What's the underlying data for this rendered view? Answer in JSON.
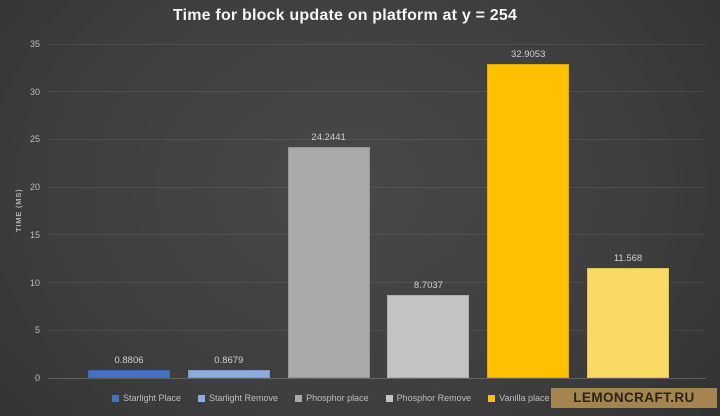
{
  "title_bar": {
    "title": "Time for block update on platform at y = 254"
  },
  "watermark": {
    "text": "LEMONCRAFT.RU",
    "bg_color": "#A5854F",
    "text_color": "#2B2413"
  },
  "colors": {
    "background_center": "#484848",
    "background_edge": "#212121",
    "gridline": "#4E4E4E",
    "axis_text": "#BDBDBD",
    "title_text": "#F5F5F5",
    "value_label_text": "#D0D0D0"
  },
  "chart_data": {
    "type": "bar",
    "title": "Time for block update on platform at y = 254",
    "xlabel": "",
    "ylabel": "TIME (MS)",
    "ylim": [
      0,
      35
    ],
    "yticks": [
      0,
      5,
      10,
      15,
      20,
      25,
      30,
      35
    ],
    "grid": true,
    "legend_position": "bottom",
    "series": [
      {
        "name": "Starlight Place",
        "value": 0.8806,
        "label": "0.8806",
        "color": "#4472C4"
      },
      {
        "name": "Starlight Remove",
        "value": 0.8679,
        "label": "0.8679",
        "color": "#8FAADC"
      },
      {
        "name": "Phosphor place",
        "value": 24.2441,
        "label": "24.2441",
        "color": "#A9A9A9"
      },
      {
        "name": "Phosphor Remove",
        "value": 8.7037,
        "label": "8.7037",
        "color": "#C3C3C3"
      },
      {
        "name": "Vanilla place",
        "value": 32.9053,
        "label": "32.9053",
        "color": "#FFC000"
      },
      {
        "name": "",
        "value": 11.568,
        "label": "11.568",
        "color": "#FAD964"
      }
    ]
  }
}
